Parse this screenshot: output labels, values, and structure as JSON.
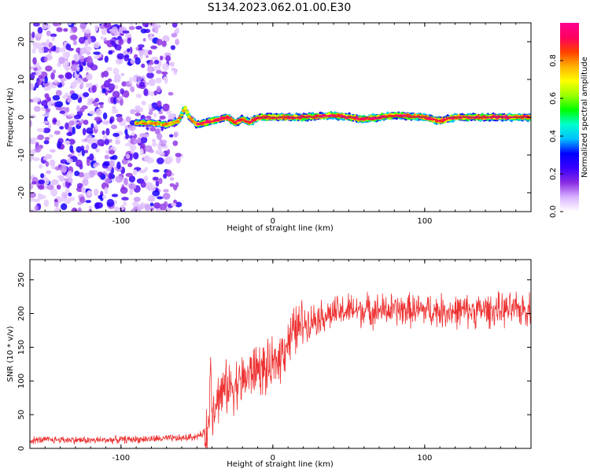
{
  "title": "S134.2023.062.01.00.E30",
  "chart_data": [
    {
      "type": "heatmap",
      "xlabel": "Height of straight line (km)",
      "ylabel": "Frequency (Hz)",
      "xlim": [
        -160,
        170
      ],
      "ylim": [
        -25,
        25
      ],
      "x_ticks": [
        -100,
        0,
        100
      ],
      "y_ticks": [
        -20,
        -10,
        0,
        10,
        20
      ],
      "colorbar": {
        "label": "Normalized spectral amplitude",
        "range": [
          0,
          1
        ],
        "ticks": [
          0.0,
          0.2,
          0.4,
          0.6,
          0.8
        ],
        "colormap": [
          "#ffffff",
          "#d9b3ff",
          "#8a2be2",
          "#3b00ff",
          "#0000ff",
          "#00bfff",
          "#00ffd0",
          "#00ff00",
          "#9aff00",
          "#ffff00",
          "#ffb000",
          "#ff4000",
          "#ff0060",
          "#ff0090"
        ]
      },
      "description_regions": [
        {
          "x_range": [
            -160,
            -60
          ],
          "kind": "noise",
          "amplitude": [
            0.05,
            0.3
          ]
        },
        {
          "x_range": [
            -90,
            170
          ],
          "kind": "signal",
          "frequency_hz": 0,
          "amplitude": [
            0.3,
            0.95
          ]
        }
      ],
      "signal_path": {
        "x": [
          -90,
          -80,
          -70,
          -62,
          -58,
          -55,
          -50,
          -45,
          -40,
          -35,
          -30,
          -25,
          -20,
          -15,
          -10,
          0,
          20,
          40,
          60,
          80,
          100,
          110,
          120,
          140,
          170
        ],
        "freq": [
          -1.5,
          -1.5,
          -2,
          -1,
          2.5,
          0,
          -2,
          -1.5,
          -1,
          -0.5,
          0,
          -1.5,
          -0.5,
          -1.5,
          0,
          0,
          0,
          0.5,
          -0.5,
          0.5,
          0,
          -1,
          0,
          0,
          0
        ]
      }
    },
    {
      "type": "line",
      "xlabel": "Height of straight line (km)",
      "ylabel": "SNR (10 * v/v)",
      "xlim": [
        -160,
        170
      ],
      "ylim": [
        0,
        280
      ],
      "x_ticks": [
        -100,
        0,
        100
      ],
      "y_ticks": [
        0,
        50,
        100,
        150,
        200,
        250
      ],
      "color": "#ee3333",
      "envelope": {
        "x": [
          -160,
          -140,
          -120,
          -100,
          -80,
          -60,
          -50,
          -45,
          -42,
          -41,
          -40,
          -35,
          -30,
          -25,
          -20,
          -15,
          -10,
          -5,
          0,
          5,
          10,
          15,
          20,
          30,
          40,
          50,
          60,
          80,
          100,
          120,
          140,
          160,
          170
        ],
        "y": [
          12,
          13,
          12,
          13,
          14,
          15,
          18,
          22,
          30,
          140,
          60,
          80,
          90,
          95,
          100,
          110,
          120,
          115,
          120,
          140,
          160,
          175,
          185,
          195,
          200,
          205,
          205,
          205,
          205,
          203,
          205,
          205,
          208
        ]
      }
    }
  ]
}
